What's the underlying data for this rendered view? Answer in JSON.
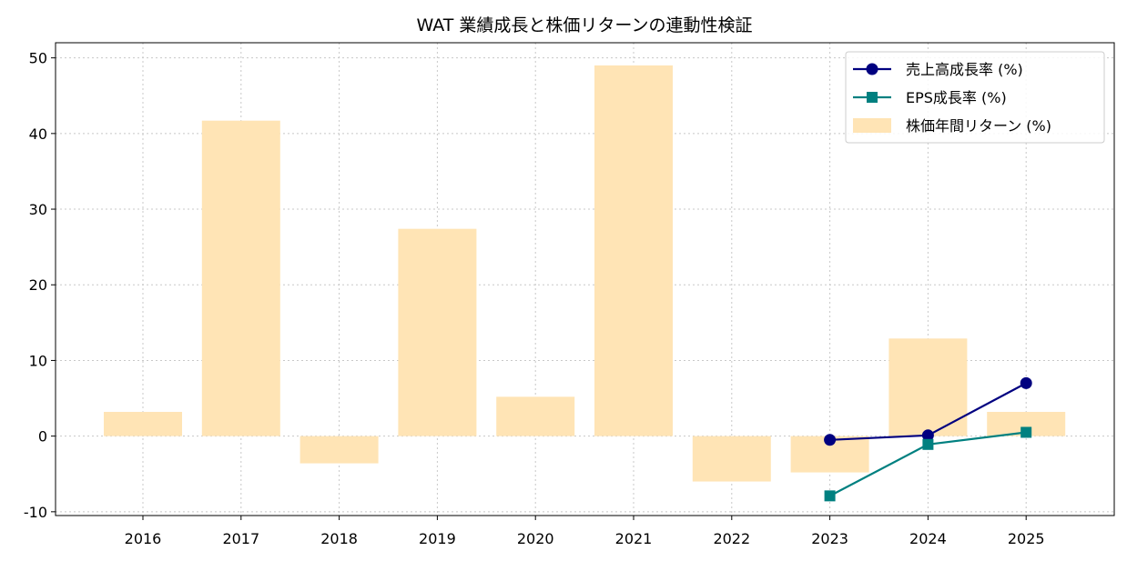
{
  "chart_data": {
    "type": "bar",
    "title": "WAT 業績成長と株価リターンの連動性検証",
    "xlabel": "",
    "ylabel": "",
    "categories": [
      "2016",
      "2017",
      "2018",
      "2019",
      "2020",
      "2021",
      "2022",
      "2023",
      "2024",
      "2025"
    ],
    "ylim": [
      -10.5,
      52
    ],
    "yticks": [
      -10,
      0,
      10,
      20,
      30,
      40,
      50
    ],
    "grid": true,
    "legend_position": "top-right",
    "bars": {
      "name": "株価年間リターン (%)",
      "color": "#ffe4b5",
      "values": [
        3.2,
        41.7,
        -3.6,
        27.4,
        5.2,
        49.0,
        -6.0,
        -4.8,
        12.9,
        3.2
      ]
    },
    "series": [
      {
        "name": "売上高成長率 (%)",
        "type": "line",
        "marker": "circle",
        "color": "#000080",
        "x": [
          "2023",
          "2024",
          "2025"
        ],
        "values": [
          -0.5,
          0.1,
          7.0
        ]
      },
      {
        "name": "EPS成長率 (%)",
        "type": "line",
        "marker": "square",
        "color": "#008080",
        "x": [
          "2023",
          "2024",
          "2025"
        ],
        "values": [
          -7.9,
          -1.1,
          0.5
        ]
      }
    ]
  }
}
